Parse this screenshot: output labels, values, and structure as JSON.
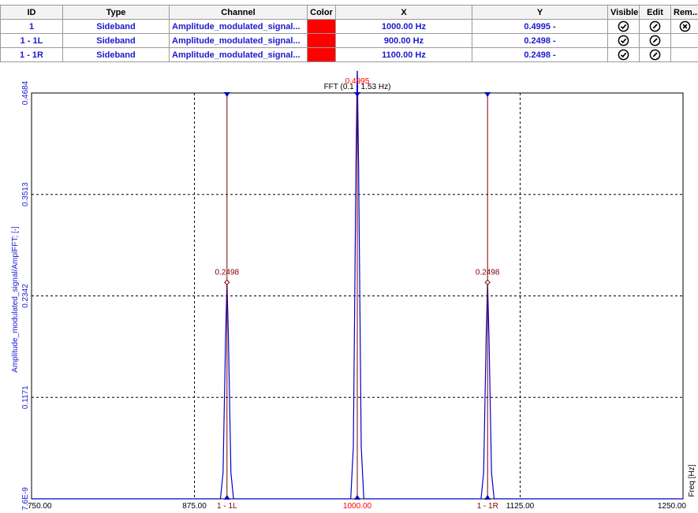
{
  "table": {
    "headers": {
      "id": "ID",
      "type": "Type",
      "channel": "Channel",
      "color": "Color",
      "x": "X",
      "y": "Y",
      "visible": "Visible",
      "edit": "Edit",
      "remove": "Rem..."
    },
    "rows": [
      {
        "id": "1",
        "type": "Sideband",
        "channel": "Amplitude_modulated_signal...",
        "color": "#ff0000",
        "x": "1000.00 Hz",
        "y": "0.4995 -",
        "visible_icon": "check-circle-icon",
        "edit_icon": "pencil-circle-icon",
        "remove_icon": "close-circle-icon"
      },
      {
        "id": "1 - 1L",
        "type": "Sideband",
        "channel": "Amplitude_modulated_signal...",
        "color": "#ff0000",
        "x": "900.00 Hz",
        "y": "0.2498 -",
        "visible_icon": "check-circle-icon",
        "edit_icon": "pencil-circle-icon"
      },
      {
        "id": "1 - 1R",
        "type": "Sideband",
        "channel": "Amplitude_modulated_signal...",
        "color": "#ff0000",
        "x": "1100.00 Hz",
        "y": "0.2498 -",
        "visible_icon": "check-circle-icon",
        "edit_icon": "pencil-circle-icon"
      }
    ]
  },
  "plot": {
    "title": "FFT (0.1 - 1.53 Hz)",
    "ylabel": "Amplitude_modulated_signal/AmplFFT; [-]",
    "xlabel": "Freq [Hz]",
    "peak_label_main": "0.4995",
    "peak_label_left": "0.2498",
    "peak_label_right": "0.2498",
    "cursor_label_left": "1 - 1L",
    "cursor_label_right": "1 - 1R",
    "cursor_label_main": "1000.00"
  },
  "chart_data": {
    "type": "line",
    "title": "FFT (0.1 - 1.53 Hz)",
    "xlabel": "Freq [Hz]",
    "ylabel": "Amplitude_modulated_signal/AmplFFT; [-]",
    "xlim": [
      750,
      1250
    ],
    "ylim": [
      7.6e-09,
      0.4684
    ],
    "x_ticks": [
      "750.00",
      "875.00",
      "1125.00",
      "1250.00"
    ],
    "y_ticks": [
      "7.6E-9",
      "0.1171",
      "0.2342",
      "0.3513",
      "0.4684"
    ],
    "grid": true,
    "series": [
      {
        "x": [
          750,
          895,
          897,
          899,
          900,
          901,
          903,
          905,
          995,
          997,
          999,
          1000,
          1001,
          1003,
          1005,
          1095,
          1097,
          1099,
          1100,
          1101,
          1103,
          1105,
          1250
        ],
        "y": [
          0,
          0,
          0.03,
          0.19,
          0.2498,
          0.19,
          0.03,
          0,
          0,
          0.06,
          0.38,
          0.4995,
          0.38,
          0.06,
          0,
          0,
          0.03,
          0.19,
          0.2498,
          0.19,
          0.03,
          0,
          0
        ]
      }
    ],
    "cursors": [
      {
        "label": "1 - 1L",
        "x": 900,
        "y": 0.2498
      },
      {
        "label": "1000.00",
        "x": 1000,
        "y": 0.4995
      },
      {
        "label": "1 - 1R",
        "x": 1100,
        "y": 0.2498
      }
    ],
    "colors": {
      "line": "#0000cc",
      "cursor": "#800000",
      "grid": "#000000",
      "axis_text": "#1a1acc"
    }
  }
}
